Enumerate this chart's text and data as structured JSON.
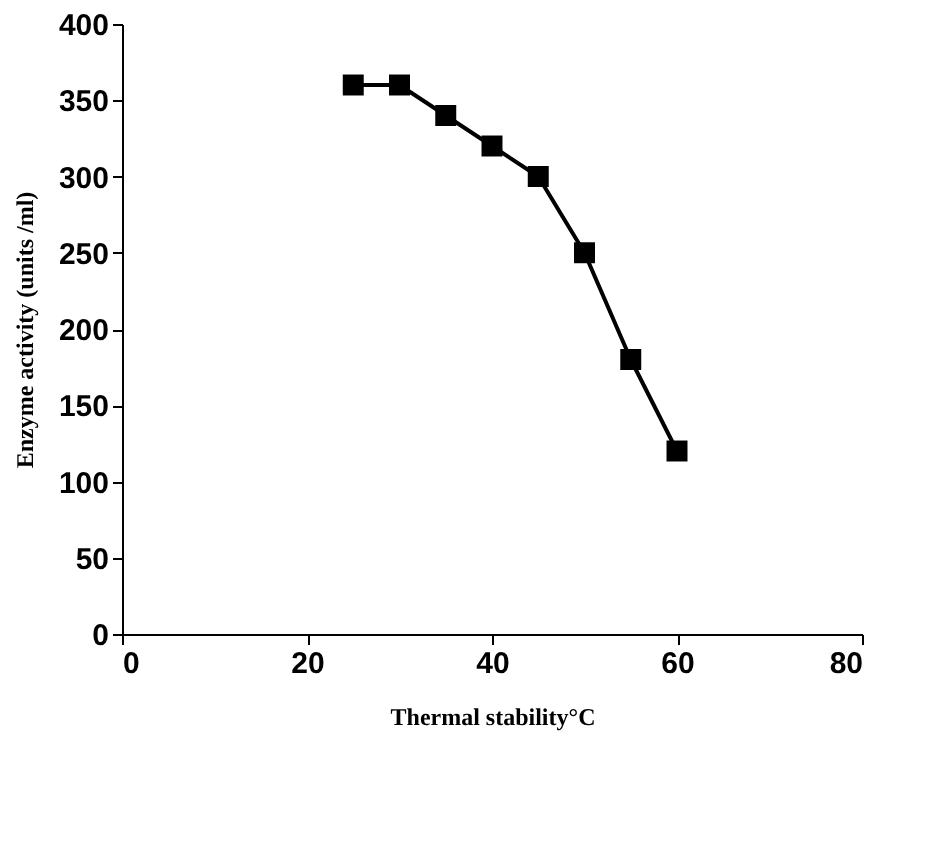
{
  "chart_data": {
    "type": "line",
    "xlabel": "Thermal stability°C",
    "ylabel": "Enzyme activity (units /ml)",
    "x": [
      25,
      30,
      35,
      40,
      45,
      50,
      55,
      60
    ],
    "series": [
      {
        "color": "#000000",
        "values": [
          360,
          360,
          340,
          320,
          300,
          250,
          180,
          120
        ]
      }
    ],
    "xlim": [
      0,
      80
    ],
    "xticks": [
      0,
      20,
      40,
      60,
      80
    ],
    "ylim": [
      0,
      400
    ],
    "yticks": [
      0,
      50,
      100,
      150,
      200,
      250,
      300,
      350,
      400
    ],
    "grid": false,
    "legend": false,
    "marker": "square",
    "line_style": "solid"
  }
}
